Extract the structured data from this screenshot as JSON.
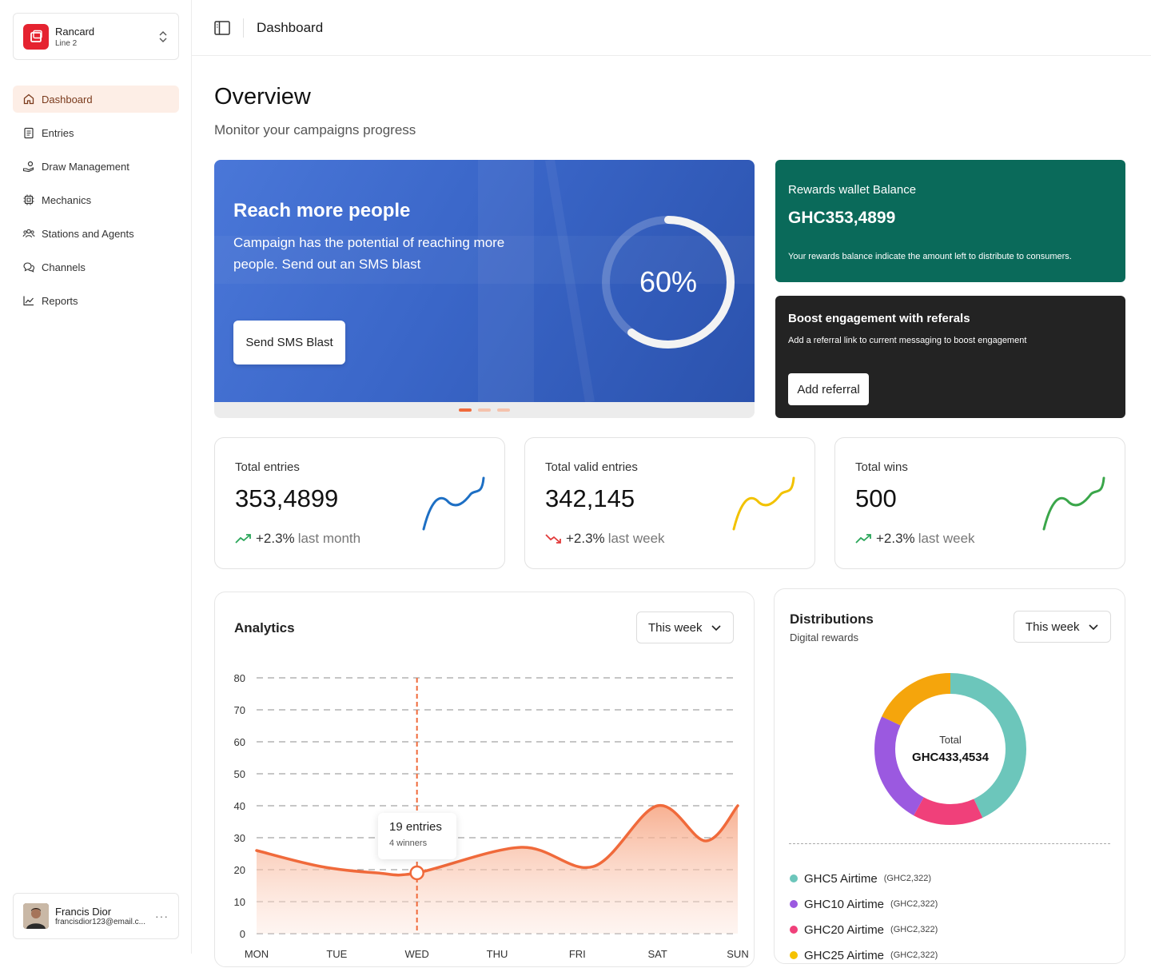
{
  "org": {
    "name": "Rancard",
    "line": "Line 2"
  },
  "nav": [
    {
      "label": "Dashboard",
      "icon": "home-icon",
      "active": true
    },
    {
      "label": "Entries",
      "icon": "clipboard-icon"
    },
    {
      "label": "Draw Management",
      "icon": "hand-coins-icon"
    },
    {
      "label": "Mechanics",
      "icon": "cpu-icon"
    },
    {
      "label": "Stations and Agents",
      "icon": "users-icon"
    },
    {
      "label": "Channels",
      "icon": "chat-icon"
    },
    {
      "label": "Reports",
      "icon": "chart-line-icon"
    }
  ],
  "user": {
    "name": "Francis Dior",
    "email": "francisdior123@email.c..."
  },
  "topbar": {
    "title": "Dashboard"
  },
  "page": {
    "title": "Overview",
    "subtitle": "Monitor your campaigns progress"
  },
  "hero": {
    "title": "Reach more people",
    "description": "Campaign has the potential of reaching more people. Send out an SMS blast",
    "button": "Send SMS Blast",
    "progress_label": "60%",
    "progress": 0.6
  },
  "wallet": {
    "title": "Rewards wallet Balance",
    "value": "GHC353,4899",
    "description": "Your rewards balance indicate the amount left to distribute to consumers."
  },
  "boost": {
    "title": "Boost engagement with referals",
    "description": "Add a referral link to current messaging to boost engagement",
    "button": "Add referral"
  },
  "stats": [
    {
      "title": "Total entries",
      "value": "353,4899",
      "change": "+2.3%",
      "period": "last month",
      "trend": "up",
      "color": "#1d6fc4"
    },
    {
      "title": "Total valid entries",
      "value": "342,145",
      "change": "+2.3%",
      "period": "last week",
      "trend": "down",
      "color": "#f2c200"
    },
    {
      "title": "Total wins",
      "value": "500",
      "change": "+2.3%",
      "period": "last week",
      "trend": "up",
      "color": "#3aa64a"
    }
  ],
  "analytics": {
    "title": "Analytics",
    "range": "This week",
    "tooltip": {
      "main": "19 entries",
      "sub": "4 winners"
    }
  },
  "chart_data": {
    "type": "area",
    "categories": [
      "MON",
      "TUE",
      "WED",
      "THU",
      "FRI",
      "SAT",
      "SUN"
    ],
    "ylim": [
      0,
      80
    ],
    "yticks": [
      0,
      10,
      20,
      30,
      40,
      50,
      60,
      70,
      80
    ],
    "series": [
      {
        "values": [
          26,
          21,
          19,
          19,
          27,
          21,
          40,
          29,
          40
        ],
        "x": [
          0,
          0.8,
          1.5,
          2.0,
          3.3,
          4.2,
          5.0,
          5.6,
          6.0
        ]
      }
    ],
    "highlight": {
      "category": "WED",
      "value": 19
    },
    "color": "#f06a3b"
  },
  "distributions": {
    "title": "Distributions",
    "subtitle": "Digital rewards",
    "range": "This week",
    "total_label": "Total",
    "total_value": "GHC433,4534",
    "segments": [
      {
        "share": 0.43,
        "color": "#6cc6bb"
      },
      {
        "share": 0.15,
        "color": "#f0407a"
      },
      {
        "share": 0.24,
        "color": "#9b59e0"
      },
      {
        "share": 0.18,
        "color": "#f5a50c"
      }
    ],
    "legend": [
      {
        "name": "GHC5 Airtime",
        "value": "(GHC2,322)",
        "color": "#6cc6bb"
      },
      {
        "name": "GHC10 Airtime",
        "value": "(GHC2,322)",
        "color": "#9b59e0"
      },
      {
        "name": "GHC20 Airtime",
        "value": "(GHC2,322)",
        "color": "#f0407a"
      },
      {
        "name": "GHC25 Airtime",
        "value": "(GHC2,322)",
        "color": "#f5c200"
      }
    ]
  }
}
